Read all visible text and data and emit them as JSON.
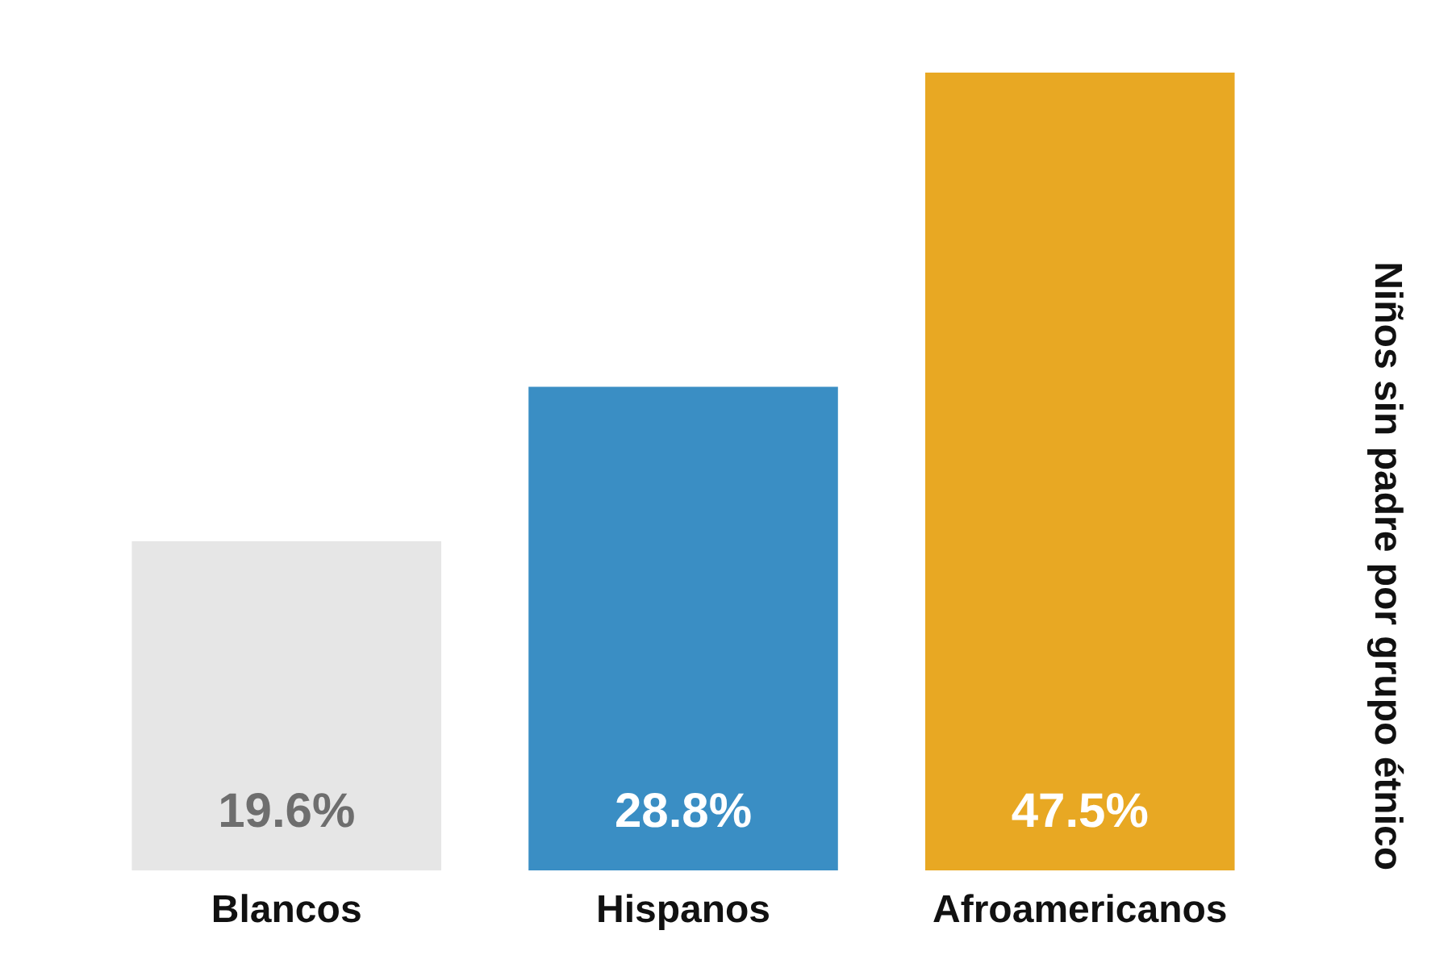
{
  "chart_data": {
    "type": "bar",
    "title": "Niños sin padre por grupo étnico",
    "categories": [
      "Blancos",
      "Hispanos",
      "Afroamericanos"
    ],
    "values": [
      19.6,
      28.8,
      47.5
    ],
    "value_labels": [
      "19.6%",
      "28.8%",
      "47.5%"
    ],
    "colors": [
      "#e6e6e6",
      "#3a8ec4",
      "#e8a823"
    ],
    "grid": false
  }
}
